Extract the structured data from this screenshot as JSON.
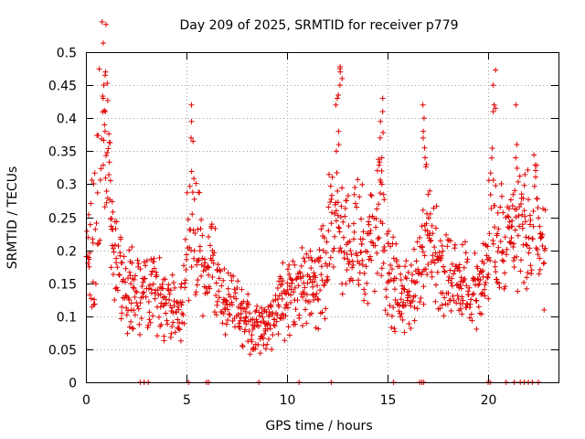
{
  "chart_data": {
    "type": "scatter",
    "title": "Day 209 of 2025, SRMTID for receiver p779",
    "xlabel": "GPS time / hours",
    "ylabel": "SRMTID / TECUs",
    "xlim": [
      0,
      23.5
    ],
    "ylim": [
      0,
      0.5
    ],
    "x_ticks": [
      0,
      5,
      10,
      15,
      20
    ],
    "x_tick_labels": [
      "0",
      "5",
      "10",
      "15",
      "20"
    ],
    "y_ticks": [
      0,
      0.05,
      0.1,
      0.15,
      0.2,
      0.25,
      0.3,
      0.35,
      0.4,
      0.45,
      0.5
    ],
    "y_tick_labels": [
      "0",
      "0.05",
      "0.1",
      "0.15",
      "0.2",
      "0.25",
      "0.3",
      "0.35",
      "0.4",
      "0.45",
      "0.5"
    ],
    "grid": true,
    "marker": "+",
    "color": "#e00000",
    "series": [
      {
        "name": "SRMTID",
        "profile": [
          [
            0.0,
            0.16
          ],
          [
            0.3,
            0.21
          ],
          [
            0.5,
            0.27
          ],
          [
            0.7,
            0.33
          ],
          [
            0.85,
            0.42
          ],
          [
            1.0,
            0.36
          ],
          [
            1.3,
            0.22
          ],
          [
            1.7,
            0.16
          ],
          [
            2.2,
            0.14
          ],
          [
            2.8,
            0.14
          ],
          [
            3.3,
            0.15
          ],
          [
            3.8,
            0.13
          ],
          [
            4.3,
            0.11
          ],
          [
            4.8,
            0.11
          ],
          [
            5.0,
            0.22
          ],
          [
            5.3,
            0.26
          ],
          [
            5.6,
            0.2
          ],
          [
            5.9,
            0.16
          ],
          [
            6.3,
            0.18
          ],
          [
            6.7,
            0.13
          ],
          [
            7.3,
            0.11
          ],
          [
            7.8,
            0.1
          ],
          [
            8.3,
            0.08
          ],
          [
            8.8,
            0.08
          ],
          [
            9.3,
            0.1
          ],
          [
            9.8,
            0.12
          ],
          [
            10.4,
            0.13
          ],
          [
            10.9,
            0.14
          ],
          [
            11.4,
            0.15
          ],
          [
            11.9,
            0.17
          ],
          [
            12.3,
            0.27
          ],
          [
            12.6,
            0.23
          ],
          [
            13.0,
            0.2
          ],
          [
            13.5,
            0.22
          ],
          [
            14.0,
            0.2
          ],
          [
            14.4,
            0.25
          ],
          [
            14.7,
            0.3
          ],
          [
            15.0,
            0.17
          ],
          [
            15.5,
            0.14
          ],
          [
            16.0,
            0.14
          ],
          [
            16.5,
            0.15
          ],
          [
            16.9,
            0.24
          ],
          [
            17.3,
            0.2
          ],
          [
            17.8,
            0.17
          ],
          [
            18.3,
            0.16
          ],
          [
            18.8,
            0.15
          ],
          [
            19.3,
            0.14
          ],
          [
            19.8,
            0.15
          ],
          [
            20.2,
            0.24
          ],
          [
            20.6,
            0.2
          ],
          [
            21.0,
            0.19
          ],
          [
            21.5,
            0.24
          ],
          [
            22.0,
            0.22
          ],
          [
            22.5,
            0.25
          ],
          [
            22.8,
            0.2
          ]
        ],
        "spikes": [
          {
            "x": 0.9,
            "values": [
              0.47,
              0.465,
              0.45,
              0.43,
              0.41,
              0.39,
              0.38
            ]
          },
          {
            "x": 5.3,
            "values": [
              0.42,
              0.395,
              0.37,
              0.365
            ]
          },
          {
            "x": 12.5,
            "values": [
              0.435,
              0.43,
              0.42,
              0.38,
              0.36,
              0.35
            ]
          },
          {
            "x": 12.7,
            "values": [
              0.478,
              0.475,
              0.47,
              0.46,
              0.45
            ]
          },
          {
            "x": 14.7,
            "values": [
              0.43,
              0.41,
              0.395,
              0.37,
              0.34,
              0.32
            ]
          },
          {
            "x": 16.8,
            "values": [
              0.42,
              0.4,
              0.38,
              0.37,
              0.355,
              0.34
            ]
          },
          {
            "x": 20.3,
            "values": [
              0.473,
              0.45,
              0.42,
              0.415,
              0.41
            ]
          },
          {
            "x": 21.4,
            "values": [
              0.42,
              0.36,
              0.34
            ]
          }
        ],
        "zero_points": [
          2.7,
          2.9,
          3.1,
          5.1,
          6.0,
          6.1,
          8.6,
          10.6,
          12.2,
          15.3,
          16.6,
          16.7,
          16.8,
          20.0,
          20.1,
          20.9,
          21.3,
          21.6,
          21.8,
          22.0,
          22.2,
          22.5
        ]
      }
    ]
  }
}
